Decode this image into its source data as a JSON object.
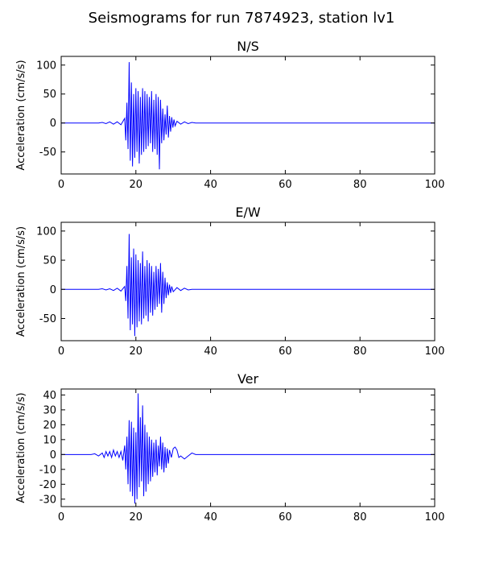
{
  "figure": {
    "suptitle": "Seismograms for run 7874923, station lv1"
  },
  "colors": {
    "trace": "#0000ff",
    "axes": "#000000",
    "background": "#ffffff"
  },
  "chart_data": [
    {
      "type": "line",
      "title": "N/S",
      "xlabel": "",
      "ylabel": "Acceleration (cm/s/s)",
      "xlim": [
        0,
        100
      ],
      "ylim": [
        -88,
        115
      ],
      "xticks": [
        0,
        20,
        40,
        60,
        80,
        100
      ],
      "yticks": [
        -50,
        0,
        50,
        100
      ],
      "grid": false,
      "series": [
        {
          "x": [
            0,
            10,
            11,
            12,
            13,
            14,
            15,
            16,
            17,
            17.3,
            17.6,
            17.9,
            18.2,
            18.5,
            18.8,
            19.1,
            19.4,
            19.7,
            20.0,
            20.3,
            20.6,
            20.9,
            21.2,
            21.5,
            21.8,
            22.1,
            22.4,
            22.7,
            23.0,
            23.3,
            23.6,
            23.9,
            24.2,
            24.5,
            24.8,
            25.1,
            25.4,
            25.7,
            26.0,
            26.3,
            26.6,
            26.9,
            27.2,
            27.5,
            27.8,
            28.1,
            28.4,
            28.7,
            29.0,
            29.3,
            29.6,
            29.9,
            30.2,
            30.5,
            31,
            32,
            33,
            34,
            35,
            36,
            40,
            60,
            80,
            100
          ],
          "y": [
            0,
            0,
            1,
            -1,
            2,
            -2,
            2,
            -3,
            8,
            -30,
            35,
            -45,
            105,
            -65,
            70,
            -75,
            50,
            -60,
            60,
            -50,
            55,
            -70,
            45,
            -55,
            60,
            -50,
            55,
            -45,
            50,
            -40,
            45,
            -35,
            55,
            -50,
            40,
            -45,
            50,
            -55,
            45,
            -80,
            40,
            -35,
            25,
            -30,
            15,
            -20,
            30,
            -25,
            12,
            -15,
            10,
            -8,
            6,
            -5,
            3,
            -2,
            2,
            -1,
            1,
            0,
            0,
            0,
            0,
            0
          ]
        }
      ]
    },
    {
      "type": "line",
      "title": "E/W",
      "xlabel": "",
      "ylabel": "Acceleration (cm/s/s)",
      "xlim": [
        0,
        100
      ],
      "ylim": [
        -88,
        115
      ],
      "xticks": [
        0,
        20,
        40,
        60,
        80,
        100
      ],
      "yticks": [
        -50,
        0,
        50,
        100
      ],
      "grid": false,
      "series": [
        {
          "x": [
            0,
            10,
            11,
            12,
            13,
            14,
            15,
            16,
            17,
            17.3,
            17.6,
            17.9,
            18.2,
            18.5,
            18.8,
            19.1,
            19.4,
            19.7,
            20.0,
            20.3,
            20.6,
            20.9,
            21.2,
            21.5,
            21.8,
            22.1,
            22.4,
            22.7,
            23.0,
            23.3,
            23.6,
            23.9,
            24.2,
            24.5,
            24.8,
            25.1,
            25.4,
            25.7,
            26.0,
            26.3,
            26.6,
            26.9,
            27.2,
            27.5,
            27.8,
            28.1,
            28.4,
            28.7,
            29.0,
            29.3,
            29.6,
            30,
            31,
            32,
            33,
            34,
            35,
            40,
            60,
            80,
            100
          ],
          "y": [
            0,
            0,
            1,
            -1,
            1,
            -2,
            2,
            -3,
            5,
            -20,
            40,
            -50,
            95,
            -70,
            55,
            -60,
            70,
            -80,
            60,
            -65,
            50,
            -55,
            45,
            -60,
            65,
            -50,
            40,
            -45,
            50,
            -55,
            45,
            -40,
            40,
            -45,
            30,
            -35,
            40,
            -30,
            35,
            -25,
            45,
            -40,
            30,
            -25,
            20,
            -15,
            12,
            -10,
            8,
            -6,
            5,
            -4,
            3,
            -2,
            2,
            -1,
            0,
            0,
            0,
            0,
            0
          ]
        }
      ]
    },
    {
      "type": "line",
      "title": "Ver",
      "xlabel": "",
      "ylabel": "Acceleration (cm/s/s)",
      "xlim": [
        0,
        100
      ],
      "ylim": [
        -35,
        44
      ],
      "xticks": [
        0,
        20,
        40,
        60,
        80,
        100
      ],
      "yticks": [
        -30,
        -20,
        -10,
        0,
        10,
        20,
        30,
        40
      ],
      "grid": false,
      "series": [
        {
          "x": [
            0,
            8,
            9,
            10,
            11,
            11.5,
            12,
            12.5,
            13,
            13.5,
            14,
            14.5,
            15,
            15.5,
            16,
            16.5,
            17,
            17.3,
            17.6,
            17.9,
            18.2,
            18.5,
            18.8,
            19.1,
            19.4,
            19.7,
            20.0,
            20.3,
            20.6,
            20.9,
            21.2,
            21.5,
            21.8,
            22.1,
            22.4,
            22.7,
            23.0,
            23.3,
            23.6,
            23.9,
            24.2,
            24.5,
            24.8,
            25.1,
            25.4,
            25.7,
            26.0,
            26.3,
            26.6,
            26.9,
            27.2,
            27.5,
            27.8,
            28.1,
            28.4,
            28.7,
            29.0,
            29.5,
            30.0,
            30.5,
            31.0,
            31.5,
            32.0,
            33,
            34,
            35,
            36,
            40,
            60,
            80,
            100
          ],
          "y": [
            0,
            0,
            0.5,
            -1,
            1,
            -2,
            2,
            -1,
            2,
            -2,
            3,
            -1,
            2,
            -2,
            2,
            -4,
            6,
            -10,
            12,
            -20,
            23,
            -25,
            22,
            -28,
            18,
            -33,
            15,
            -30,
            41,
            -22,
            25,
            -18,
            33,
            -28,
            20,
            -25,
            15,
            -20,
            12,
            -18,
            10,
            -15,
            8,
            -12,
            10,
            -14,
            6,
            -8,
            12,
            -10,
            8,
            -12,
            5,
            -9,
            4,
            -6,
            3,
            -2,
            4,
            5,
            3,
            -2,
            -1,
            -3,
            -1,
            1,
            0,
            0,
            0,
            0,
            0
          ]
        }
      ]
    }
  ]
}
